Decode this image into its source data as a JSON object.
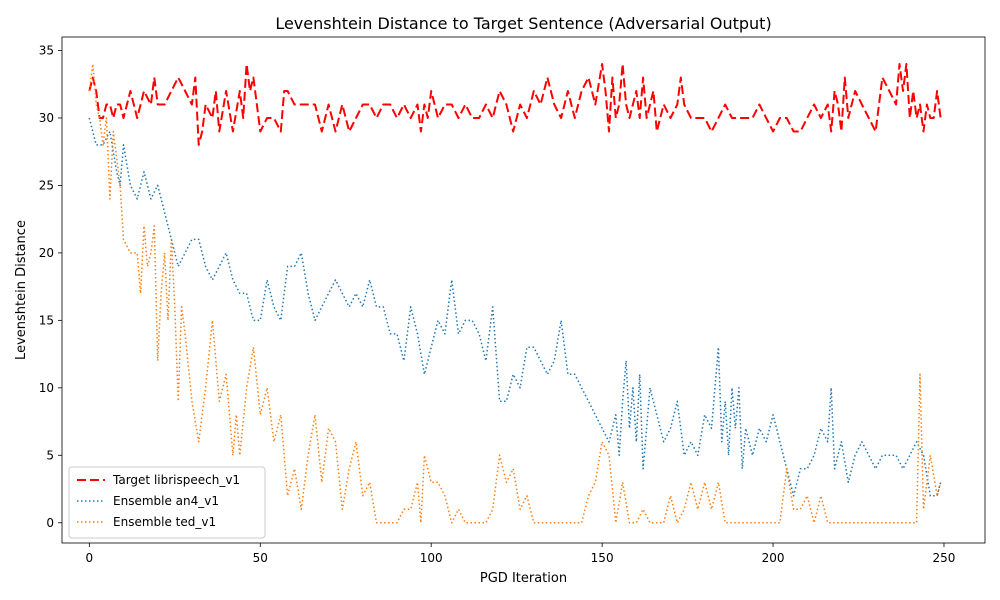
{
  "chart_data": {
    "type": "line",
    "title": "Levenshtein Distance to Target Sentence (Adversarial Output)",
    "xlabel": "PGD Iteration",
    "ylabel": "Levenshtein Distance",
    "xlim": [
      -8,
      262
    ],
    "ylim": [
      -1.5,
      36
    ],
    "xticks": [
      0,
      50,
      100,
      150,
      200,
      250
    ],
    "yticks": [
      0,
      5,
      10,
      15,
      20,
      25,
      30,
      35
    ],
    "grid": false,
    "legend_position": "lower-left",
    "series": [
      {
        "name": "Target librispeech_v1",
        "color": "#ff0000",
        "style": "dashed",
        "x": [
          0,
          1,
          2,
          3,
          4,
          5,
          6,
          7,
          8,
          9,
          10,
          12,
          14,
          16,
          18,
          19,
          20,
          22,
          24,
          26,
          28,
          30,
          31,
          32,
          33,
          34,
          36,
          37,
          38,
          40,
          42,
          44,
          45,
          46,
          47,
          48,
          50,
          52,
          54,
          56,
          57,
          58,
          60,
          62,
          64,
          66,
          68,
          70,
          72,
          74,
          76,
          78,
          80,
          82,
          84,
          86,
          88,
          90,
          92,
          94,
          96,
          97,
          98,
          99,
          100,
          102,
          104,
          106,
          108,
          110,
          112,
          114,
          116,
          118,
          120,
          122,
          124,
          126,
          128,
          130,
          132,
          134,
          136,
          138,
          140,
          142,
          144,
          146,
          148,
          150,
          151,
          152,
          153,
          154,
          155,
          156,
          157,
          158,
          160,
          161,
          162,
          163,
          164,
          165,
          166,
          168,
          170,
          172,
          173,
          174,
          176,
          178,
          180,
          182,
          184,
          186,
          188,
          190,
          192,
          194,
          196,
          198,
          200,
          202,
          204,
          206,
          208,
          210,
          212,
          214,
          216,
          217,
          218,
          219,
          220,
          221,
          222,
          223,
          224,
          226,
          228,
          230,
          232,
          234,
          236,
          237,
          238,
          239,
          240,
          241,
          242,
          243,
          244,
          245,
          246,
          247,
          248,
          249
        ],
        "values": [
          32,
          33,
          32,
          30,
          30,
          31,
          31,
          30,
          31,
          31,
          30,
          32,
          30,
          32,
          31,
          33,
          31,
          31,
          32,
          33,
          32,
          31,
          33,
          28,
          29,
          31,
          30,
          32,
          29,
          32,
          29,
          32,
          30,
          34,
          32,
          33,
          29,
          30,
          30,
          29,
          32,
          32,
          31,
          31,
          31,
          31,
          29,
          31,
          29,
          31,
          29,
          30,
          31,
          31,
          30,
          31,
          31,
          30,
          31,
          30,
          31,
          29,
          31,
          30,
          32,
          30,
          31,
          31,
          30,
          31,
          30,
          30,
          31,
          30,
          32,
          31,
          29,
          31,
          30,
          32,
          31,
          33,
          31,
          30,
          32,
          30,
          32,
          33,
          31,
          34,
          32,
          29,
          33,
          30,
          31,
          34,
          31,
          30,
          32,
          30,
          33,
          30,
          31,
          32,
          29,
          31,
          30,
          31,
          33,
          31,
          30,
          30,
          30,
          29,
          30,
          31,
          30,
          30,
          30,
          30,
          31,
          30,
          29,
          30,
          30,
          29,
          29,
          30,
          31,
          30,
          31,
          29,
          32,
          31,
          29,
          33,
          30,
          31,
          32,
          31,
          30,
          29,
          33,
          32,
          31,
          34,
          32,
          34,
          30,
          32,
          30,
          31,
          29,
          31,
          30,
          30,
          32,
          30
        ]
      },
      {
        "name": "Ensemble an4_v1",
        "color": "#1f77b4",
        "style": "dotted",
        "x": [
          0,
          2,
          4,
          6,
          8,
          9,
          10,
          12,
          14,
          16,
          18,
          20,
          22,
          24,
          26,
          28,
          30,
          32,
          34,
          36,
          38,
          40,
          42,
          44,
          46,
          48,
          50,
          52,
          54,
          56,
          58,
          60,
          62,
          64,
          66,
          68,
          70,
          72,
          74,
          76,
          78,
          80,
          82,
          84,
          86,
          88,
          90,
          92,
          94,
          96,
          98,
          100,
          102,
          104,
          106,
          108,
          110,
          112,
          114,
          116,
          118,
          120,
          122,
          124,
          126,
          128,
          130,
          132,
          134,
          136,
          138,
          140,
          142,
          144,
          146,
          148,
          150,
          152,
          154,
          155,
          156,
          157,
          158,
          159,
          160,
          161,
          162,
          163,
          164,
          166,
          168,
          170,
          172,
          174,
          176,
          178,
          180,
          182,
          184,
          185,
          186,
          187,
          188,
          189,
          190,
          191,
          192,
          194,
          196,
          198,
          200,
          202,
          204,
          206,
          208,
          210,
          212,
          214,
          216,
          217,
          218,
          219,
          220,
          222,
          224,
          226,
          228,
          230,
          232,
          234,
          236,
          238,
          240,
          242,
          244,
          246,
          248,
          249
        ],
        "values": [
          30,
          28,
          28,
          29,
          26,
          25,
          28,
          25,
          24,
          26,
          24,
          25,
          23,
          21,
          19,
          20,
          21,
          21,
          19,
          18,
          19,
          20,
          18,
          17,
          17,
          15,
          15,
          18,
          16,
          15,
          19,
          19,
          20,
          17,
          15,
          16,
          17,
          18,
          17,
          16,
          17,
          16,
          18,
          16,
          16,
          14,
          14,
          12,
          16,
          14,
          11,
          13,
          15,
          14,
          18,
          14,
          15,
          15,
          14,
          12,
          16,
          9,
          9,
          11,
          10,
          13,
          13,
          12,
          11,
          12,
          15,
          11,
          11,
          10,
          9,
          8,
          7,
          6,
          8,
          5,
          9,
          12,
          7,
          10,
          6,
          11,
          4,
          7,
          10,
          8,
          6,
          7,
          9,
          5,
          6,
          5,
          8,
          7,
          13,
          6,
          9,
          5,
          10,
          7,
          10,
          4,
          7,
          5,
          7,
          6,
          8,
          6,
          4,
          2,
          4,
          4,
          5,
          7,
          6,
          10,
          4,
          5,
          6,
          3,
          5,
          6,
          5,
          4,
          5,
          5,
          5,
          4,
          5,
          6,
          5,
          2,
          2,
          3
        ]
      },
      {
        "name": "Ensemble ted_v1",
        "color": "#ff7f0e",
        "style": "dotted",
        "x": [
          0,
          1,
          2,
          3,
          4,
          5,
          6,
          7,
          8,
          9,
          10,
          12,
          14,
          15,
          16,
          17,
          18,
          19,
          20,
          21,
          22,
          23,
          24,
          25,
          26,
          27,
          28,
          30,
          32,
          34,
          36,
          38,
          40,
          42,
          43,
          44,
          46,
          48,
          50,
          52,
          54,
          56,
          58,
          60,
          62,
          64,
          66,
          68,
          70,
          72,
          74,
          76,
          78,
          80,
          82,
          84,
          86,
          88,
          90,
          92,
          94,
          96,
          97,
          98,
          100,
          102,
          104,
          106,
          108,
          110,
          112,
          114,
          116,
          118,
          120,
          122,
          124,
          126,
          128,
          130,
          132,
          134,
          136,
          138,
          140,
          142,
          144,
          146,
          148,
          150,
          152,
          154,
          156,
          158,
          160,
          162,
          164,
          166,
          168,
          170,
          172,
          174,
          176,
          178,
          180,
          182,
          184,
          186,
          188,
          190,
          192,
          194,
          196,
          198,
          200,
          202,
          204,
          206,
          208,
          210,
          212,
          214,
          216,
          218,
          220,
          222,
          224,
          226,
          228,
          230,
          232,
          234,
          236,
          238,
          240,
          242,
          243,
          244,
          246,
          248,
          249
        ],
        "values": [
          32,
          34,
          31,
          30,
          28,
          30,
          24,
          29,
          27,
          25,
          21,
          20,
          20,
          17,
          22,
          19,
          20,
          22,
          12,
          17,
          20,
          15,
          21,
          16,
          9,
          16,
          14,
          9,
          6,
          10,
          15,
          9,
          11,
          5,
          8,
          5,
          10,
          13,
          8,
          10,
          6,
          8,
          2,
          4,
          1,
          5,
          8,
          3,
          7,
          6,
          1,
          4,
          6,
          2,
          3,
          0,
          0,
          0,
          0,
          1,
          1,
          3,
          0,
          5,
          3,
          3,
          2,
          0,
          1,
          0,
          0,
          0,
          0,
          1,
          5,
          3,
          4,
          1,
          2,
          0,
          0,
          0,
          0,
          0,
          0,
          0,
          0,
          2,
          3,
          6,
          5,
          0,
          3,
          0,
          0,
          1,
          0,
          0,
          0,
          2,
          0,
          1,
          3,
          1,
          3,
          1,
          3,
          0,
          0,
          0,
          0,
          0,
          0,
          0,
          0,
          0,
          4,
          1,
          1,
          2,
          0,
          2,
          0,
          0,
          0,
          0,
          0,
          0,
          0,
          0,
          0,
          0,
          0,
          0,
          0,
          0,
          11,
          1,
          5,
          2,
          3
        ]
      }
    ]
  }
}
